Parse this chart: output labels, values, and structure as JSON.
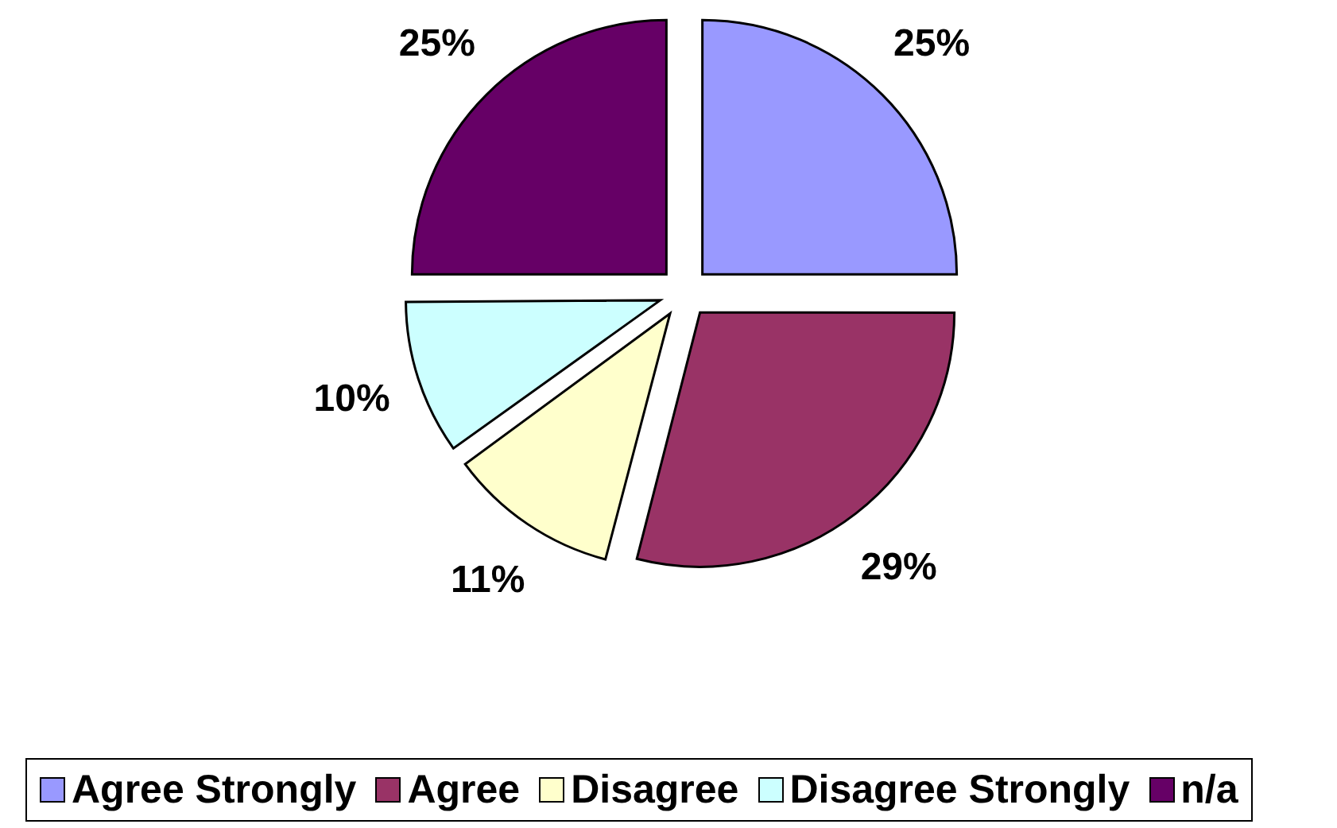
{
  "chart_data": {
    "type": "pie",
    "categories": [
      "Agree Strongly",
      "Agree",
      "Disagree",
      "Disagree Strongly",
      "n/a"
    ],
    "values": [
      25,
      29,
      11,
      10,
      25
    ],
    "colors": [
      "#9999ff",
      "#993366",
      "#ffffcc",
      "#ccffff",
      "#660066"
    ],
    "value_labels": [
      "25%",
      "29%",
      "11%",
      "10%",
      "25%"
    ],
    "legend": "bottom"
  }
}
